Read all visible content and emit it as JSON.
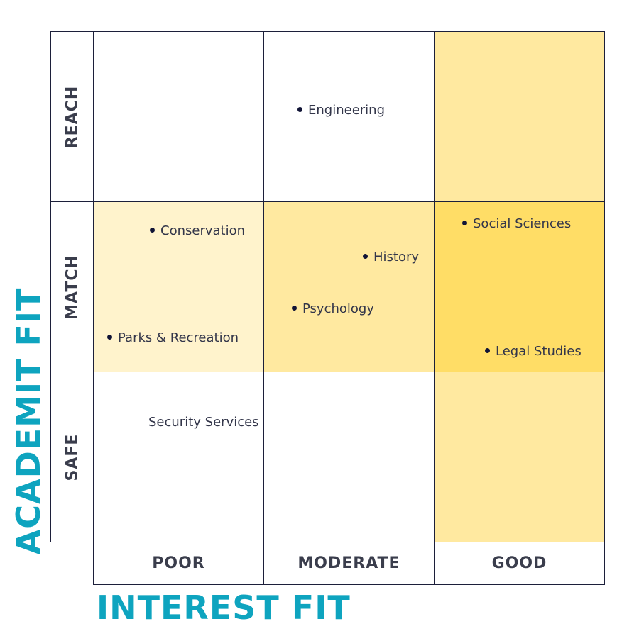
{
  "axes": {
    "x_title": "INTEREST FIT",
    "y_title": "ACADEMIT FIT"
  },
  "rows": [
    "REACH",
    "MATCH",
    "SAFE"
  ],
  "columns": [
    "POOR",
    "MODERATE",
    "GOOD"
  ],
  "colors": {
    "border": "#1c1f3a",
    "axis_title": "#0ea4bf",
    "light_yellow": "#fff3cc",
    "mid_yellow": "#ffe9a0",
    "strong_yellow": "#ffdd66",
    "dot": "#111436"
  },
  "items": {
    "engineering": "Engineering",
    "conservation": "Conservation",
    "parks": "Parks & Recreation",
    "history": "History",
    "psychology": "Psychology",
    "social_sciences": "Social Sciences",
    "legal_studies": "Legal Studies",
    "security_services": "Security Services"
  }
}
